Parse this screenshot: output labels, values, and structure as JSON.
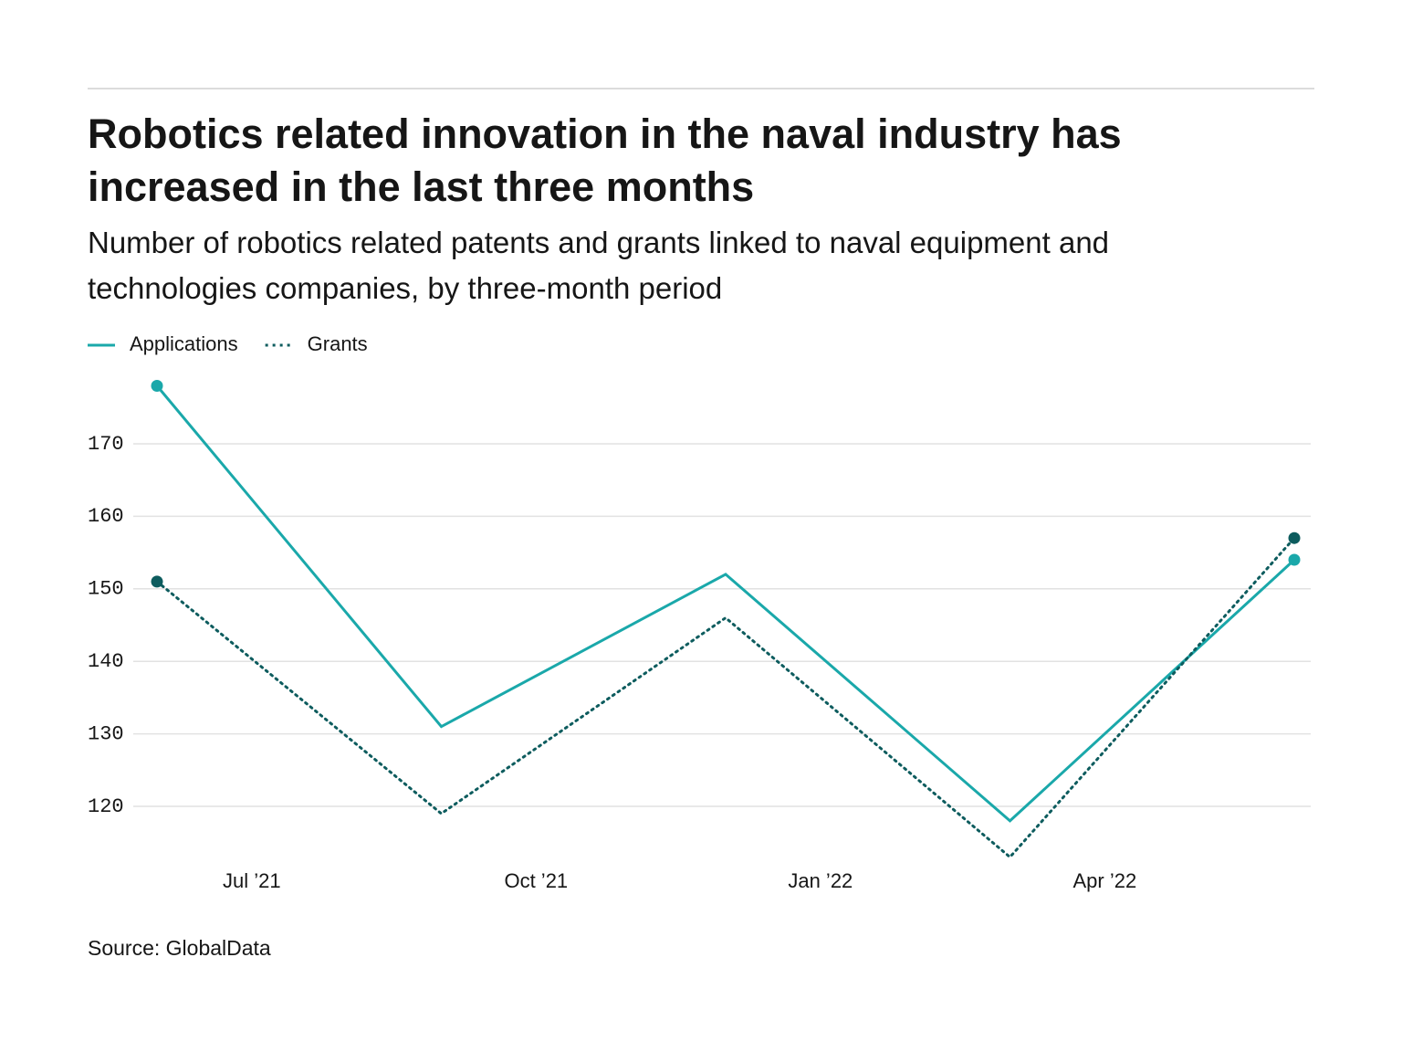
{
  "chart_data": {
    "type": "line",
    "title": "Robotics related innovation in the naval industry has increased in the last three months",
    "subtitle": "Number of robotics related patents and grants linked to naval equipment and technologies companies, by three-month period",
    "source": "Source: GlobalData",
    "x": [
      "2021-06",
      "2021-09",
      "2021-12",
      "2022-03",
      "2022-06"
    ],
    "xlim": [
      "2021-06",
      "2022-06"
    ],
    "xticks": [
      {
        "value": "2021-07",
        "label": "Jul ’21"
      },
      {
        "value": "2021-10",
        "label": "Oct ’21"
      },
      {
        "value": "2022-01",
        "label": "Jan ’22"
      },
      {
        "value": "2022-04",
        "label": "Apr ’22"
      }
    ],
    "ylim": [
      112,
      180
    ],
    "yticks": [
      120,
      130,
      140,
      150,
      160,
      170
    ],
    "grid": true,
    "legend": "top-left",
    "series": [
      {
        "name": "Applications",
        "color": "#1aa8aa",
        "style": "solid",
        "values": [
          178,
          131,
          152,
          118,
          154
        ]
      },
      {
        "name": "Grants",
        "color": "#0d5c5e",
        "style": "dotted",
        "values": [
          151,
          119,
          146,
          113,
          157
        ]
      }
    ]
  }
}
